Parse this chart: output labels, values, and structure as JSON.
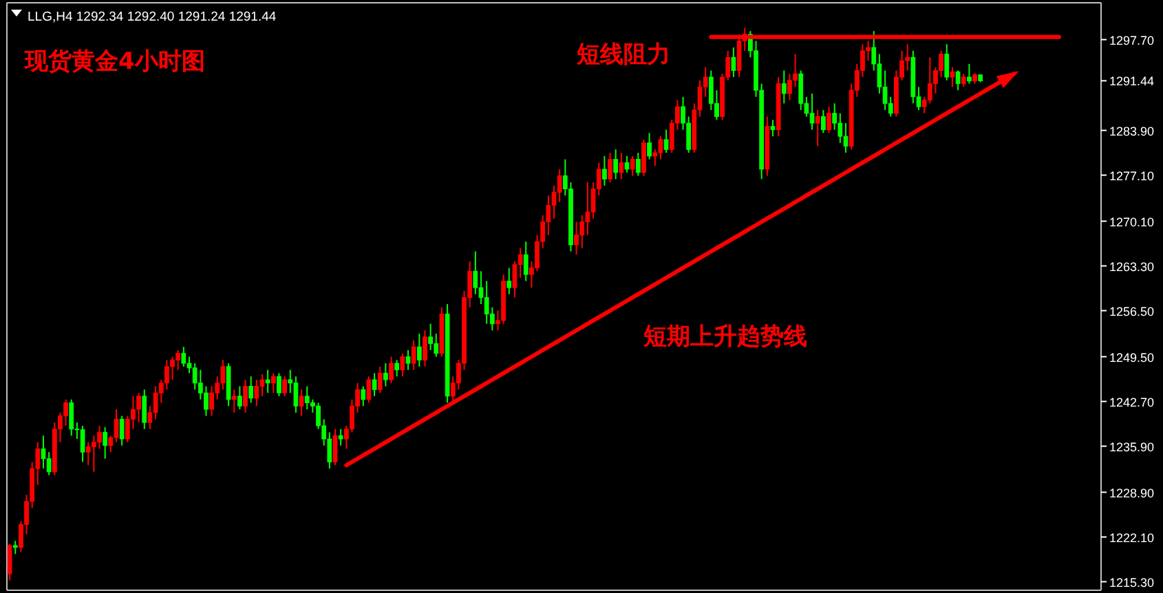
{
  "chart_data": {
    "type": "candlestick",
    "title": "LLG,H4  1292.34 1292.40 1291.24 1291.44",
    "annotations": [
      "现货黄金4小时图",
      "短线阻力",
      "短期上升趋势线"
    ],
    "categories": [
      null,
      null,
      null,
      null,
      null,
      null,
      null,
      null,
      null,
      null,
      null,
      null,
      null,
      null,
      null,
      null,
      null,
      null,
      null,
      null,
      null,
      null,
      null,
      null,
      null,
      null,
      null,
      null,
      null,
      null,
      null,
      null,
      null,
      null,
      null,
      null,
      null,
      null,
      null,
      null,
      null,
      null,
      null,
      null,
      null,
      null,
      null,
      null,
      null,
      null,
      null,
      null,
      null,
      null,
      null,
      null,
      null,
      null,
      null,
      null,
      null,
      null,
      null,
      null,
      null,
      null,
      null,
      null,
      null,
      null,
      null,
      null,
      null,
      null,
      null,
      null,
      null,
      null,
      null,
      null,
      null,
      null,
      null,
      null,
      null,
      null,
      null,
      null,
      null,
      null,
      null,
      null,
      null,
      null,
      null,
      null,
      null,
      null,
      null,
      null,
      null,
      null,
      null,
      null,
      null,
      null,
      null,
      null,
      null,
      null,
      null,
      null,
      null,
      null,
      null,
      null,
      null,
      null,
      null,
      null,
      null,
      null,
      null,
      null,
      null,
      null,
      null,
      null,
      null,
      null,
      null,
      null,
      null,
      null,
      null,
      null,
      null,
      null,
      null,
      null,
      null,
      null,
      null,
      null,
      null,
      null,
      null,
      null,
      null,
      null,
      null,
      null,
      null,
      null,
      null,
      null,
      null,
      null,
      null,
      null,
      null,
      null,
      null,
      null,
      null,
      null,
      null,
      null,
      null,
      null,
      null,
      null,
      null,
      null,
      null,
      null,
      null,
      null,
      null,
      null,
      null,
      null,
      null,
      null,
      null,
      null,
      null,
      null,
      null,
      null,
      null,
      null,
      null,
      null,
      null
    ],
    "ohlc": [
      [
        1216.5,
        1221,
        1215.5,
        1220.8
      ],
      [
        1220.8,
        1221.5,
        1219.5,
        1220.5
      ],
      [
        1220.5,
        1224.5,
        1219.8,
        1224
      ],
      [
        1224,
        1228.5,
        1222.5,
        1227.5
      ],
      [
        1227.5,
        1233.5,
        1226.5,
        1232.5
      ],
      [
        1232.5,
        1236.5,
        1230,
        1235.5
      ],
      [
        1235.5,
        1237.5,
        1232.5,
        1234
      ],
      [
        1234,
        1235,
        1231.5,
        1232
      ],
      [
        1232,
        1239.5,
        1231.5,
        1238.5
      ],
      [
        1238.5,
        1241,
        1236.5,
        1240.5
      ],
      [
        1240.5,
        1243,
        1239,
        1242.5
      ],
      [
        1242.5,
        1243,
        1237.5,
        1238.5
      ],
      [
        1238.5,
        1239.5,
        1237,
        1238.4
      ],
      [
        1238.4,
        1239,
        1233.5,
        1235
      ],
      [
        1235,
        1236.5,
        1233,
        1235.8
      ],
      [
        1235.8,
        1237.5,
        1232,
        1236.5
      ],
      [
        1236.5,
        1239,
        1235.5,
        1238
      ],
      [
        1238,
        1238.8,
        1234,
        1236
      ],
      [
        1236,
        1237.5,
        1235,
        1237.2
      ],
      [
        1237.2,
        1241.5,
        1236.5,
        1240
      ],
      [
        1240,
        1240.5,
        1236,
        1237
      ],
      [
        1237,
        1240.5,
        1236.5,
        1240
      ],
      [
        1240,
        1243.5,
        1238.5,
        1241.5
      ],
      [
        1241.5,
        1244,
        1239.5,
        1243.5
      ],
      [
        1243.5,
        1244.5,
        1238.5,
        1239.5
      ],
      [
        1239.5,
        1242,
        1238.5,
        1241
      ],
      [
        1241,
        1245,
        1240,
        1244
      ],
      [
        1244,
        1246,
        1242.5,
        1245.5
      ],
      [
        1245.5,
        1249,
        1244.5,
        1248
      ],
      [
        1248,
        1249.5,
        1246,
        1249
      ],
      [
        1249,
        1250.5,
        1247.5,
        1250
      ],
      [
        1250,
        1251,
        1248,
        1248.5
      ],
      [
        1248.5,
        1249.5,
        1247,
        1247.8
      ],
      [
        1247.8,
        1248.5,
        1244.5,
        1245.5
      ],
      [
        1245.5,
        1247.5,
        1243,
        1244
      ],
      [
        1244,
        1245,
        1240.5,
        1241.5
      ],
      [
        1241.5,
        1245,
        1240.5,
        1244
      ],
      [
        1244,
        1246.5,
        1243,
        1245.5
      ],
      [
        1245.5,
        1249,
        1244.5,
        1248
      ],
      [
        1248,
        1248.5,
        1242,
        1243
      ],
      [
        1243,
        1244.5,
        1241,
        1243.5
      ],
      [
        1243.5,
        1245,
        1241.5,
        1242
      ],
      [
        1242,
        1246,
        1241,
        1245
      ],
      [
        1245,
        1246.5,
        1242.5,
        1243.2
      ],
      [
        1243.2,
        1246,
        1242,
        1245
      ],
      [
        1245,
        1246.8,
        1243.5,
        1246
      ],
      [
        1246,
        1247.5,
        1244,
        1245.5
      ],
      [
        1245.5,
        1247,
        1244,
        1246.5
      ],
      [
        1246.5,
        1247,
        1243.5,
        1244
      ],
      [
        1244,
        1246.5,
        1243.5,
        1246
      ],
      [
        1246,
        1247.5,
        1244,
        1245.5
      ],
      [
        1245.5,
        1246.5,
        1241,
        1242
      ],
      [
        1242,
        1244.5,
        1240.5,
        1243.5
      ],
      [
        1243.5,
        1245,
        1241.5,
        1242.5
      ],
      [
        1242.5,
        1243,
        1241,
        1242
      ],
      [
        1242,
        1242.5,
        1238.5,
        1239
      ],
      [
        1239,
        1240,
        1236,
        1237
      ],
      [
        1237,
        1238,
        1232.5,
        1233.5
      ],
      [
        1233.5,
        1238.5,
        1233,
        1237.5
      ],
      [
        1237.5,
        1238.5,
        1236,
        1237
      ],
      [
        1237,
        1239,
        1235.5,
        1238.5
      ],
      [
        1238.5,
        1243,
        1238,
        1242
      ],
      [
        1242,
        1245.5,
        1241,
        1244.5
      ],
      [
        1244.5,
        1245,
        1242,
        1243
      ],
      [
        1243,
        1246.5,
        1242.5,
        1246
      ],
      [
        1246,
        1247,
        1243.5,
        1244.5
      ],
      [
        1244.5,
        1248,
        1244,
        1247
      ],
      [
        1247,
        1248.5,
        1245,
        1246
      ],
      [
        1246,
        1249.5,
        1245.5,
        1248.5
      ],
      [
        1248.5,
        1249,
        1246.5,
        1247.5
      ],
      [
        1247.5,
        1250,
        1246.5,
        1249.5
      ],
      [
        1249.5,
        1250.5,
        1247.5,
        1248.5
      ],
      [
        1248.5,
        1252,
        1247.5,
        1251
      ],
      [
        1251,
        1253,
        1248,
        1249
      ],
      [
        1249,
        1253.5,
        1248,
        1252.5
      ],
      [
        1252.5,
        1254.5,
        1250.5,
        1251.5
      ],
      [
        1251.5,
        1253,
        1249.5,
        1250
      ],
      [
        1250,
        1257,
        1249.5,
        1256
      ],
      [
        1256,
        1257.5,
        1242.5,
        1243.5
      ],
      [
        1243.5,
        1246.5,
        1242.5,
        1245.5
      ],
      [
        1245.5,
        1249,
        1244.5,
        1248.5
      ],
      [
        1248.5,
        1259.5,
        1247.5,
        1258.5
      ],
      [
        1258.5,
        1264,
        1257,
        1262.5
      ],
      [
        1262.5,
        1265.5,
        1259,
        1260
      ],
      [
        1260,
        1262.5,
        1257.5,
        1258.5
      ],
      [
        1258.5,
        1261,
        1254.5,
        1256
      ],
      [
        1256,
        1257,
        1253.5,
        1254.5
      ],
      [
        1254.5,
        1256.5,
        1253.5,
        1255
      ],
      [
        1255,
        1262,
        1254.5,
        1261
      ],
      [
        1261,
        1263,
        1259,
        1260
      ],
      [
        1260,
        1264,
        1258.5,
        1263.5
      ],
      [
        1263.5,
        1266,
        1261.5,
        1265
      ],
      [
        1265,
        1267,
        1261,
        1262
      ],
      [
        1262,
        1264,
        1260,
        1263
      ],
      [
        1263,
        1268,
        1262.5,
        1267
      ],
      [
        1267,
        1271,
        1266,
        1270
      ],
      [
        1270,
        1274,
        1268,
        1272.5
      ],
      [
        1272.5,
        1275.5,
        1270.5,
        1274.5
      ],
      [
        1274.5,
        1278,
        1273,
        1277
      ],
      [
        1277,
        1279.5,
        1274,
        1275
      ],
      [
        1275,
        1276,
        1265.5,
        1266.5
      ],
      [
        1266.5,
        1270,
        1265,
        1268
      ],
      [
        1268,
        1271,
        1266,
        1270
      ],
      [
        1270,
        1276,
        1268,
        1271.5
      ],
      [
        1271.5,
        1276,
        1270.5,
        1275
      ],
      [
        1275,
        1279,
        1274,
        1278
      ],
      [
        1278,
        1280,
        1275.5,
        1276.5
      ],
      [
        1276.5,
        1280.5,
        1276,
        1279.5
      ],
      [
        1279.5,
        1281,
        1276.5,
        1277.5
      ],
      [
        1277.5,
        1280.5,
        1276.5,
        1279
      ],
      [
        1279,
        1280,
        1277.5,
        1278
      ],
      [
        1278,
        1280,
        1277,
        1279.5
      ],
      [
        1279.5,
        1280.5,
        1277,
        1277.5
      ],
      [
        1277.5,
        1282.5,
        1277,
        1282
      ],
      [
        1282,
        1283.5,
        1279.5,
        1280
      ],
      [
        1280,
        1281,
        1278.5,
        1280.5
      ],
      [
        1280.5,
        1283,
        1279.5,
        1282.5
      ],
      [
        1282.5,
        1284,
        1280.5,
        1281
      ],
      [
        1281,
        1285.5,
        1280.5,
        1285
      ],
      [
        1285,
        1288.5,
        1284,
        1287.5
      ],
      [
        1287.5,
        1289,
        1284,
        1285
      ],
      [
        1285,
        1286,
        1280.5,
        1281
      ],
      [
        1281,
        1288,
        1280.5,
        1287
      ],
      [
        1287,
        1291.5,
        1286,
        1290.5
      ],
      [
        1290.5,
        1293.5,
        1289,
        1292
      ],
      [
        1292,
        1293,
        1287,
        1288
      ],
      [
        1288,
        1290,
        1285.5,
        1286
      ],
      [
        1286,
        1292.5,
        1285.5,
        1292
      ],
      [
        1292,
        1296,
        1291.5,
        1295
      ],
      [
        1295,
        1296.5,
        1292,
        1293
      ],
      [
        1293,
        1298.5,
        1292,
        1297.5
      ],
      [
        1297.5,
        1299.5,
        1296,
        1298.5
      ],
      [
        1298.5,
        1299,
        1295,
        1296
      ],
      [
        1296,
        1297.5,
        1289,
        1290
      ],
      [
        1290,
        1291,
        1276.5,
        1278
      ],
      [
        1278,
        1286,
        1277,
        1284.5
      ],
      [
        1284.5,
        1285.5,
        1283,
        1284
      ],
      [
        1284,
        1292,
        1283,
        1291
      ],
      [
        1291,
        1293,
        1288,
        1289.5
      ],
      [
        1289.5,
        1292.5,
        1288.5,
        1291.5
      ],
      [
        1291.5,
        1295.5,
        1290.5,
        1292.5
      ],
      [
        1292.5,
        1293,
        1287,
        1288
      ],
      [
        1288,
        1289,
        1286,
        1286.5
      ],
      [
        1286.5,
        1289.5,
        1284,
        1285
      ],
      [
        1285,
        1287,
        1281.5,
        1286
      ],
      [
        1286,
        1287,
        1283.5,
        1284
      ],
      [
        1284,
        1287.5,
        1283.5,
        1286.5
      ],
      [
        1286.5,
        1288,
        1284,
        1285
      ],
      [
        1285,
        1286.5,
        1282,
        1283
      ],
      [
        1283,
        1285,
        1280.5,
        1281.5
      ],
      [
        1281.5,
        1291,
        1281,
        1290
      ],
      [
        1290,
        1294,
        1289,
        1293
      ],
      [
        1293,
        1297,
        1292,
        1296
      ],
      [
        1296,
        1297.5,
        1294.5,
        1296.5
      ],
      [
        1296.5,
        1299,
        1293,
        1294
      ],
      [
        1294,
        1295.5,
        1289.5,
        1290.5
      ],
      [
        1290.5,
        1293,
        1287,
        1288
      ],
      [
        1288,
        1289,
        1286,
        1286.5
      ],
      [
        1286.5,
        1293,
        1286,
        1292
      ],
      [
        1292,
        1296,
        1291.5,
        1294.5
      ],
      [
        1294.5,
        1297,
        1293,
        1295
      ],
      [
        1295,
        1296,
        1288,
        1289
      ],
      [
        1289,
        1290.5,
        1287,
        1287.5
      ],
      [
        1287.5,
        1289,
        1286.5,
        1288.5
      ],
      [
        1288.5,
        1295,
        1288,
        1291
      ],
      [
        1291,
        1293.5,
        1289.5,
        1293
      ],
      [
        1293,
        1296,
        1292,
        1295.5
      ],
      [
        1295.5,
        1297,
        1291.5,
        1292
      ],
      [
        1292,
        1293.5,
        1290.5,
        1292.8
      ],
      [
        1292.8,
        1293,
        1290,
        1291
      ],
      [
        1291,
        1292.5,
        1290.5,
        1292
      ],
      [
        1292,
        1294,
        1291,
        1291.4
      ],
      [
        1291.4,
        1292.6,
        1291,
        1292.34
      ],
      [
        1292.34,
        1292.4,
        1291.24,
        1291.44
      ],
      null,
      null,
      null,
      null,
      null,
      null,
      null,
      null,
      null,
      null,
      null,
      null,
      null,
      null,
      null,
      null,
      null,
      null,
      null,
      null,
      null
    ],
    "series": [
      {
        "type": "line",
        "color": "#ff0000",
        "values": [
          null,
          null,
          null,
          null,
          null,
          null,
          null,
          null,
          null,
          null,
          null,
          null,
          null,
          null,
          null,
          null,
          null,
          null,
          null,
          null,
          null,
          null,
          null,
          null,
          null,
          null,
          null,
          null,
          null,
          null,
          null,
          null,
          null,
          null,
          null,
          null,
          null,
          null,
          null,
          null,
          null,
          null,
          null,
          null,
          null,
          null,
          null,
          null,
          null,
          null,
          null,
          null,
          null,
          null,
          null,
          null,
          null,
          null,
          null,
          null,
          null,
          null,
          null,
          null,
          null,
          null,
          null,
          null,
          null,
          null,
          null,
          null,
          null,
          null,
          null,
          null,
          null,
          null,
          null,
          null,
          null,
          null,
          null,
          null,
          null,
          null,
          null,
          null,
          null,
          null,
          null,
          null,
          null,
          null,
          null,
          null,
          null,
          null,
          null,
          null,
          null,
          null,
          null,
          null,
          null,
          null,
          null,
          null,
          null,
          null,
          null,
          null,
          null,
          null,
          null,
          null,
          null,
          null,
          null,
          null,
          null,
          null,
          null,
          null,
          null,
          1298.1,
          1298.1,
          1298.1,
          1298.1,
          1298.1,
          1298.1,
          1298.1,
          1298.1,
          1298.1,
          1298.1,
          1298.1,
          1298.1,
          1298.1,
          1298.1,
          1298.1,
          1298.1,
          1298.1,
          1298.1,
          1298.1,
          1298.1,
          1298.1,
          1298.1,
          1298.1,
          1298.1,
          1298.1,
          1298.1,
          1298.1,
          1298.1,
          1298.1,
          1298.1,
          1298.1,
          1298.1,
          1298.1,
          1298.1,
          1298.1,
          1298.1,
          1298.1,
          1298.1,
          1298.1,
          1298.1,
          1298.1,
          1298.1,
          1298.1,
          1298.1,
          1298.1,
          1298.1,
          1298.1,
          1298.1,
          1298.1,
          1298.1,
          1298.1,
          1298.1,
          1298.1,
          1298.1,
          1298.1,
          1298.1,
          1298.1,
          1298.1,
          1298.1,
          1298.1,
          1298.1,
          1298.1,
          1298.1,
          null,
          null,
          null,
          null,
          null,
          null,
          null
        ]
      },
      {
        "type": "line",
        "color": "#ff0000",
        "values": [
          null,
          null,
          null,
          null,
          null,
          null,
          null,
          null,
          null,
          null,
          null,
          null,
          null,
          null,
          null,
          null,
          null,
          null,
          null,
          null,
          null,
          null,
          null,
          null,
          null,
          null,
          null,
          null,
          null,
          null,
          null,
          null,
          null,
          null,
          null,
          null,
          null,
          null,
          null,
          null,
          null,
          null,
          null,
          null,
          null,
          null,
          null,
          null,
          null,
          null,
          null,
          null,
          null,
          null,
          null,
          null,
          null,
          null,
          null,
          null,
          1233.0,
          1233.5,
          1234.0,
          1234.5,
          1235.0,
          1235.5,
          1236.0,
          1236.5,
          1237.0,
          1237.5,
          1238.0,
          1238.5,
          1239.0,
          1239.5,
          1240.0,
          1240.5,
          1241.0,
          1241.5,
          1242.0,
          1242.5,
          1243.0,
          1243.5,
          1244.0,
          1244.5,
          1245.0,
          1245.5,
          1246.0,
          1246.5,
          1247.0,
          1247.5,
          1248.0,
          1248.5,
          1249.0,
          1249.5,
          1250.0,
          1250.5,
          1251.0,
          1251.5,
          1252.0,
          1252.5,
          1253.0,
          1253.5,
          1254.0,
          1254.5,
          1255.0,
          1255.5,
          1256.0,
          1256.5,
          1257.0,
          1257.5,
          1258.0,
          1258.5,
          1259.0,
          1259.5,
          1260.0,
          1260.5,
          1261.0,
          1261.5,
          1262.0,
          1262.5,
          1263.0,
          1263.5,
          1264.0,
          1264.5,
          1265.0,
          1265.5,
          1266.0,
          1266.5,
          1267.0,
          1267.5,
          1268.0,
          1268.5,
          1269.0,
          1269.5,
          1270.0,
          1270.5,
          1271.0,
          1271.5,
          1272.0,
          1272.5,
          1273.0,
          1273.5,
          1274.0,
          1274.5,
          1275.0,
          1275.5,
          1276.0,
          1276.5,
          1277.0,
          1277.5,
          1278.0,
          1278.5,
          1279.0,
          1279.5,
          1280.0,
          1280.5,
          1281.0,
          1281.5,
          1282.0,
          1282.5,
          1283.0,
          1283.5,
          1284.0,
          1284.5,
          1285.0,
          1285.5,
          1286.0,
          1286.5,
          1287.0,
          1287.5,
          1288.0,
          1288.5,
          1289.0,
          1289.5,
          1290.0,
          1290.5,
          1291.0,
          1291.5,
          1292.0,
          1292.5,
          null,
          null,
          null,
          null,
          null,
          null,
          null,
          null,
          null,
          null,
          null,
          null,
          null,
          null,
          null
        ]
      }
    ],
    "ylim": [
      1214.0,
      1303.3
    ],
    "yticks": [
      {
        "value": 1215.3,
        "label": "1215.30"
      },
      {
        "value": 1222.1,
        "label": "1222.10"
      },
      {
        "value": 1228.9,
        "label": "1228.90"
      },
      {
        "value": 1235.9,
        "label": "1235.90"
      },
      {
        "value": 1242.7,
        "label": "1242.70"
      },
      {
        "value": 1249.5,
        "label": "1249.50"
      },
      {
        "value": 1256.5,
        "label": "1256.50"
      },
      {
        "value": 1263.3,
        "label": "1263.30"
      },
      {
        "value": 1270.1,
        "label": "1270.10"
      },
      {
        "value": 1277.1,
        "label": "1277.10"
      },
      {
        "value": 1283.9,
        "label": "1283.90"
      },
      {
        "value": 1291.44,
        "label": "1291.44"
      },
      {
        "value": 1297.7,
        "label": "1297.70"
      }
    ]
  }
}
